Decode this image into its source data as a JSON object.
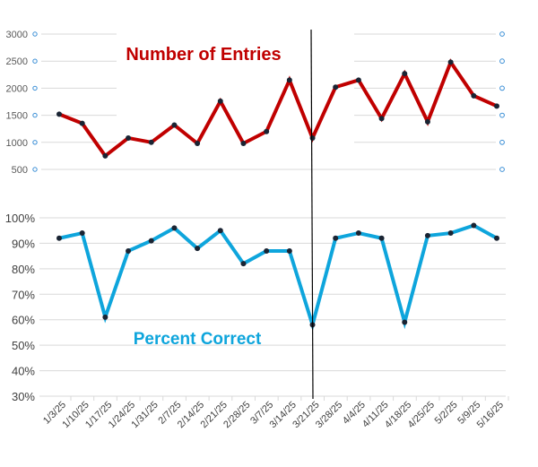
{
  "chart_data": [
    {
      "type": "line",
      "title": "Number of Entries",
      "categories": [
        "1/3/25",
        "1/10/25",
        "1/17/25",
        "1/24/25",
        "1/31/25",
        "2/7/25",
        "2/14/25",
        "2/21/25",
        "2/28/25",
        "3/7/25",
        "3/14/25",
        "3/21/25",
        "3/28/25",
        "4/4/25",
        "4/11/25",
        "4/18/25",
        "4/25/25",
        "5/2/25",
        "5/9/25",
        "5/16/25"
      ],
      "values": [
        1520,
        1350,
        750,
        1080,
        1000,
        1320,
        980,
        1760,
        980,
        1200,
        2150,
        1080,
        2020,
        2150,
        1440,
        2270,
        1380,
        2480,
        1860,
        1670
      ],
      "yticks": [
        "3000",
        "2500",
        "2000",
        "1500",
        "1000",
        "500"
      ],
      "ylim": [
        500,
        3000
      ],
      "color": "#c00000",
      "grid": true
    },
    {
      "type": "line",
      "title": "Percent Correct",
      "categories": [
        "1/3/25",
        "1/10/25",
        "1/17/25",
        "1/24/25",
        "1/31/25",
        "2/7/25",
        "2/14/25",
        "2/21/25",
        "2/28/25",
        "3/7/25",
        "3/14/25",
        "3/21/25",
        "3/28/25",
        "4/4/25",
        "4/11/25",
        "4/18/25",
        "4/25/25",
        "5/2/25",
        "5/9/25",
        "5/16/25"
      ],
      "values": [
        92,
        94,
        61,
        87,
        91,
        96,
        88,
        95,
        82,
        87,
        87,
        58,
        92,
        94,
        92,
        59,
        93,
        94,
        97,
        92
      ],
      "yticks": [
        "100%",
        "90%",
        "80%",
        "70%",
        "60%",
        "50%",
        "40%",
        "30%"
      ],
      "ylim": [
        30,
        100
      ],
      "color": "#0ea5dc",
      "grid": true
    }
  ]
}
